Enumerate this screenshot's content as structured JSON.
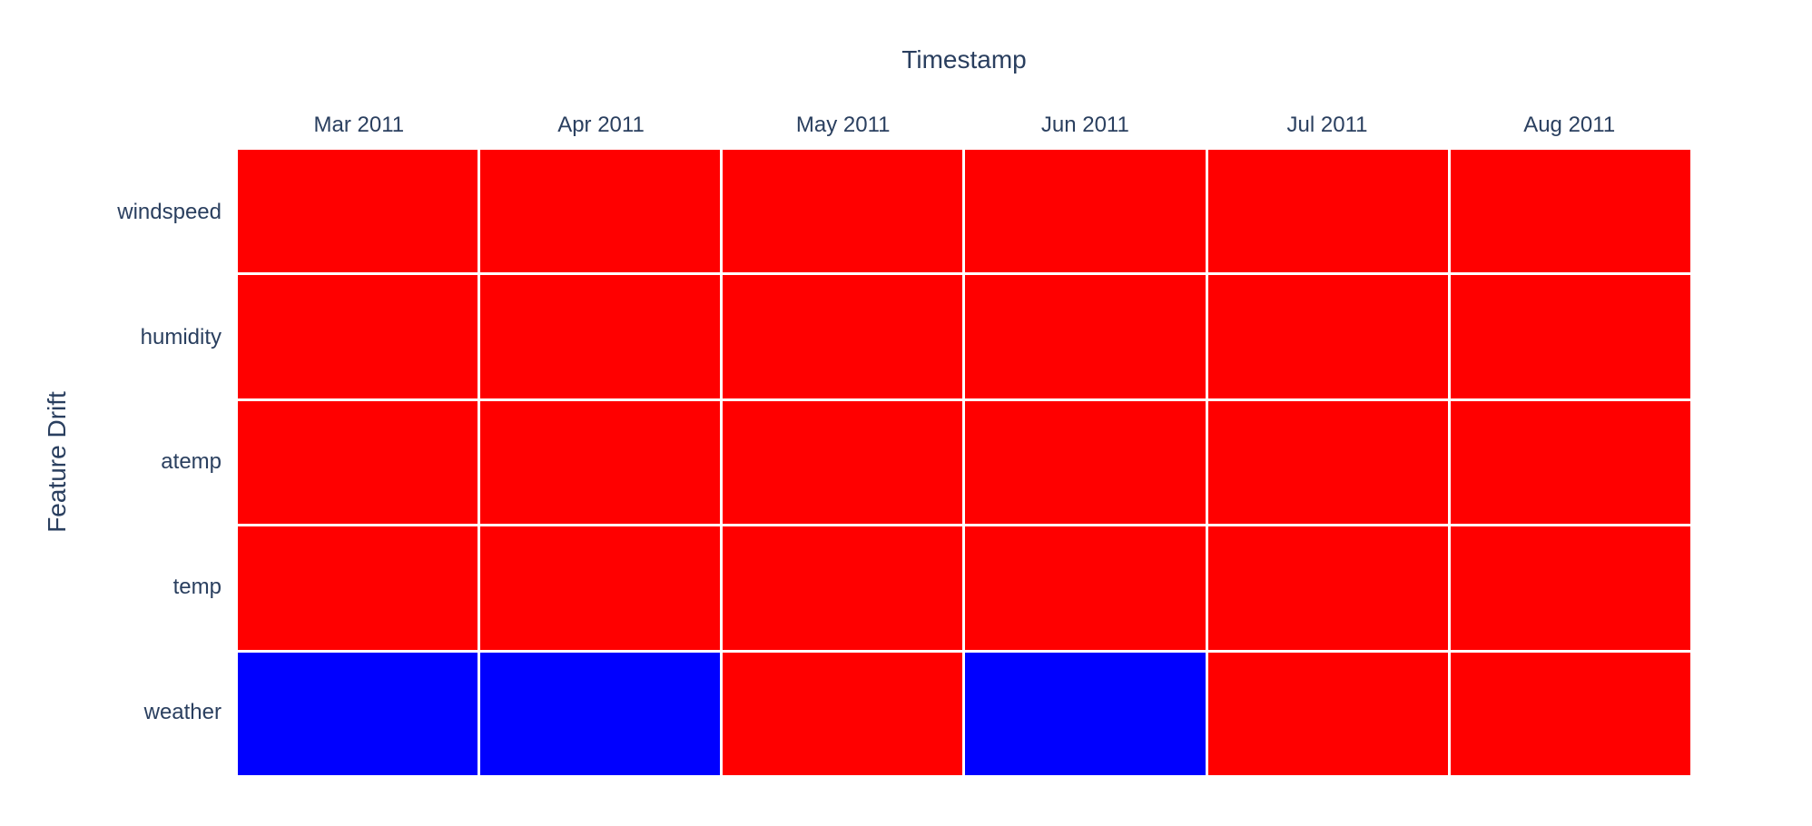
{
  "x_axis_title": "Timestamp",
  "y_axis_title": "Feature Drift",
  "colors": {
    "drift": "#ff0000",
    "no_drift": "#0000ff",
    "text": "#2a3f5f",
    "background": "#ffffff",
    "cell_gap": "#ffffff"
  },
  "chart_data": {
    "type": "heatmap",
    "title": "Timestamp",
    "xlabel": "Timestamp",
    "ylabel": "Feature Drift",
    "x_categories": [
      "Mar 2011",
      "Apr 2011",
      "May 2011",
      "Jun 2011",
      "Jul 2011",
      "Aug 2011"
    ],
    "y_categories": [
      "windspeed",
      "humidity",
      "atemp",
      "temp",
      "weather"
    ],
    "rows": [
      {
        "feature": "windspeed",
        "values": [
          1,
          1,
          1,
          1,
          1,
          1
        ]
      },
      {
        "feature": "humidity",
        "values": [
          1,
          1,
          1,
          1,
          1,
          1
        ]
      },
      {
        "feature": "atemp",
        "values": [
          1,
          1,
          1,
          1,
          1,
          1
        ]
      },
      {
        "feature": "temp",
        "values": [
          1,
          1,
          1,
          1,
          1,
          1
        ]
      },
      {
        "feature": "weather",
        "values": [
          0,
          0,
          1,
          0,
          1,
          1
        ]
      }
    ],
    "value_colors": {
      "1": "#ff0000",
      "0": "#0000ff"
    },
    "grid": false,
    "legend": false
  }
}
